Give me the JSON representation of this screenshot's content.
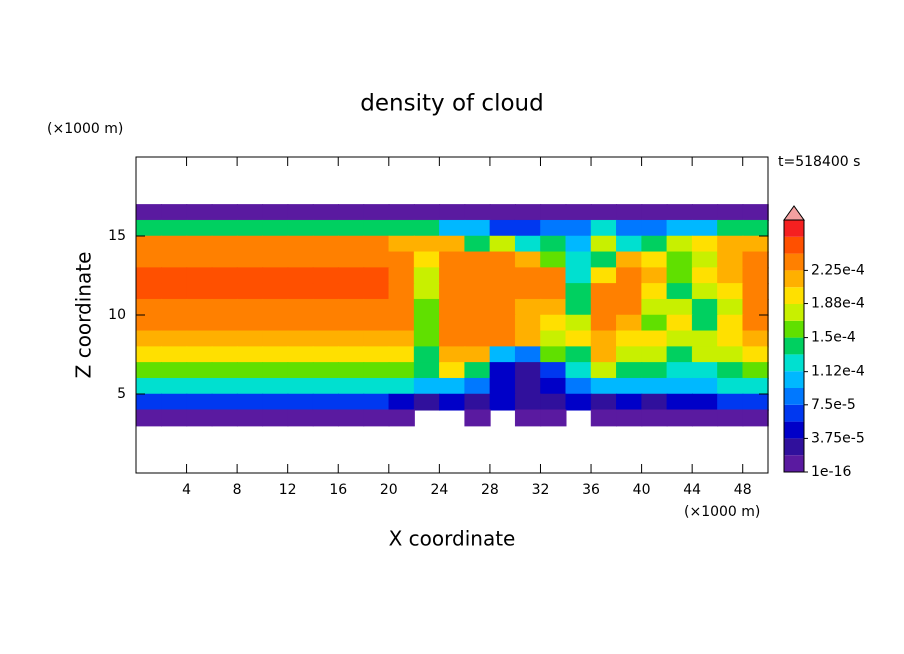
{
  "chart_data": {
    "type": "contour",
    "title": "density of cloud",
    "x_label": "X coordinate",
    "y_label": "Z coordinate",
    "x_unit": "(×1000 m)",
    "y_unit": "(×1000 m)",
    "time_label": "t=518400 s",
    "xlim": [
      0,
      50
    ],
    "ylim": [
      0,
      20
    ],
    "xticks": [
      4,
      8,
      12,
      16,
      20,
      24,
      28,
      32,
      36,
      40,
      44,
      48
    ],
    "yticks": [
      5,
      10,
      15
    ],
    "clim": [
      1e-16,
      0.00028125
    ],
    "cticks": [
      1e-16,
      {
        "value": 3.75e-05,
        "label": "3.75e-5"
      },
      {
        "value": 7.5e-05,
        "label": "7.5e-5"
      },
      {
        "value": 0.000112,
        "label": "1.12e-4"
      },
      {
        "value": 0.00015,
        "label": "1.5e-4"
      },
      {
        "value": 0.000188,
        "label": "1.88e-4"
      },
      {
        "value": 0.000225,
        "label": "2.25e-4"
      }
    ],
    "colors": [
      "#5a1aa0",
      "#30109c",
      "#0000c8",
      "#0038f0",
      "#0078ff",
      "#00b8ff",
      "#00e0d0",
      "#00d060",
      "#60e000",
      "#c8f000",
      "#ffe000",
      "#ffb000",
      "#ff8000",
      "#ff5000",
      "#f52020"
    ],
    "over_color": "#f4a0a0",
    "x": [
      1,
      3,
      5,
      7,
      9,
      11,
      13,
      15,
      17,
      19,
      21,
      23,
      25,
      27,
      29,
      31,
      33,
      35,
      37,
      39,
      41,
      43,
      45,
      47,
      49
    ],
    "z": [
      16.5,
      15.5,
      14.5,
      13.5,
      12.5,
      11.5,
      10.5,
      9.5,
      8.5,
      7.5,
      6.5,
      5.5,
      4.5,
      3.5
    ],
    "values": [
      [
        1e-05,
        1e-05,
        1e-05,
        1e-05,
        1e-05,
        1e-05,
        1e-05,
        1e-05,
        1e-05,
        1e-05,
        1e-05,
        1e-05,
        1e-05,
        1e-05,
        1e-05,
        1e-05,
        1e-05,
        1e-05,
        1e-05,
        1e-05,
        1e-05,
        1e-05,
        1e-05,
        1e-05,
        1e-05
      ],
      [
        0.00015,
        0.00015,
        0.00015,
        0.00015,
        0.00015,
        0.00015,
        0.00015,
        0.00015,
        0.00015,
        0.00015,
        0.00014,
        0.00014,
        0.0001,
        0.0001,
        6e-05,
        6e-05,
        9e-05,
        9e-05,
        0.00012,
        8e-05,
        8e-05,
        0.00011,
        0.00011,
        0.00014,
        0.00014
      ],
      [
        0.00023,
        0.00023,
        0.00023,
        0.00023,
        0.00023,
        0.00023,
        0.00023,
        0.00023,
        0.00023,
        0.00023,
        0.00022,
        0.00022,
        0.00021,
        0.00014,
        0.00017,
        0.00013,
        0.00015,
        0.0001,
        0.00018,
        0.00012,
        0.00015,
        0.00018,
        0.0002,
        0.00022,
        0.00022
      ],
      [
        0.00024,
        0.00024,
        0.00024,
        0.00024,
        0.00024,
        0.00024,
        0.00024,
        0.00024,
        0.00024,
        0.00024,
        0.00023,
        0.0002,
        0.00023,
        0.00024,
        0.00024,
        0.00022,
        0.00016,
        0.00012,
        0.00014,
        0.00022,
        0.0002,
        0.00016,
        0.00018,
        0.00022,
        0.00024
      ],
      [
        0.000245,
        0.000245,
        0.000245,
        0.000245,
        0.000245,
        0.000245,
        0.000245,
        0.000245,
        0.000245,
        0.000245,
        0.00024,
        0.00018,
        0.00023,
        0.00024,
        0.00024,
        0.00024,
        0.00023,
        0.00013,
        0.0002,
        0.00024,
        0.00022,
        0.00016,
        0.00019,
        0.00022,
        0.00024
      ],
      [
        0.000245,
        0.000245,
        0.000245,
        0.000245,
        0.000245,
        0.000245,
        0.000245,
        0.000245,
        0.000245,
        0.000245,
        0.00024,
        0.00017,
        0.00024,
        0.00024,
        0.00024,
        0.00024,
        0.00023,
        0.00014,
        0.00023,
        0.00024,
        0.0002,
        0.00015,
        0.00018,
        0.00019,
        0.00024
      ],
      [
        0.00024,
        0.00024,
        0.00024,
        0.00024,
        0.00024,
        0.00024,
        0.00024,
        0.00024,
        0.00024,
        0.00024,
        0.00024,
        0.00016,
        0.00024,
        0.00024,
        0.00024,
        0.00021,
        0.00022,
        0.00015,
        0.00024,
        0.00023,
        0.00018,
        0.00017,
        0.00014,
        0.00018,
        0.00024
      ],
      [
        0.00023,
        0.00023,
        0.00023,
        0.00023,
        0.00023,
        0.00023,
        0.00023,
        0.00023,
        0.00023,
        0.00023,
        0.000235,
        0.00016,
        0.00024,
        0.00024,
        0.00024,
        0.00022,
        0.0002,
        0.00017,
        0.00023,
        0.00022,
        0.00016,
        0.0002,
        0.00015,
        0.0002,
        0.00023
      ],
      [
        0.000215,
        0.000215,
        0.000215,
        0.000215,
        0.000215,
        0.000215,
        0.000215,
        0.000215,
        0.000215,
        0.000215,
        0.00022,
        0.00016,
        0.00023,
        0.00023,
        0.00023,
        0.00021,
        0.00018,
        0.00019,
        0.00022,
        0.0002,
        0.00019,
        0.00017,
        0.00018,
        0.0002,
        0.000215
      ],
      [
        0.000195,
        0.000195,
        0.000195,
        0.000195,
        0.000195,
        0.000195,
        0.000195,
        0.000195,
        0.000195,
        0.000195,
        0.00019,
        0.00015,
        0.00022,
        0.00021,
        0.0001,
        8e-05,
        0.00016,
        0.00015,
        0.00021,
        0.00018,
        0.00017,
        0.00014,
        0.00017,
        0.00018,
        0.000195
      ],
      [
        0.000165,
        0.000165,
        0.000165,
        0.000165,
        0.000165,
        0.000165,
        0.000165,
        0.000165,
        0.000165,
        0.000165,
        0.00016,
        0.00014,
        0.00019,
        0.00015,
        5e-05,
        3e-05,
        7e-05,
        0.00012,
        0.00017,
        0.00015,
        0.00014,
        0.00013,
        0.00013,
        0.00015,
        0.000165
      ],
      [
        0.00012,
        0.00012,
        0.00012,
        0.00012,
        0.00012,
        0.00012,
        0.00012,
        0.00012,
        0.00012,
        0.00012,
        0.000115,
        0.0001,
        0.00011,
        8e-05,
        4e-05,
        3e-05,
        5e-05,
        8e-05,
        0.00011,
        0.0001,
        0.00011,
        0.0001,
        0.00011,
        0.000115,
        0.00012
      ],
      [
        6e-05,
        6e-05,
        6e-05,
        6e-05,
        6e-05,
        6e-05,
        6e-05,
        6e-05,
        6e-05,
        6e-05,
        5e-05,
        3e-05,
        4e-05,
        3e-05,
        4e-05,
        2e-05,
        3e-05,
        4e-05,
        3e-05,
        4e-05,
        3e-05,
        5e-05,
        5e-05,
        6e-05,
        6e-05
      ],
      [
        1e-05,
        1e-05,
        1e-05,
        1e-05,
        1e-05,
        1e-05,
        1e-05,
        1e-05,
        1e-05,
        1e-05,
        1e-05,
        0,
        0,
        1e-05,
        0,
        1e-05,
        1e-05,
        0,
        1e-05,
        1e-05,
        1e-05,
        1e-05,
        1e-05,
        1e-05,
        1e-05
      ]
    ]
  }
}
